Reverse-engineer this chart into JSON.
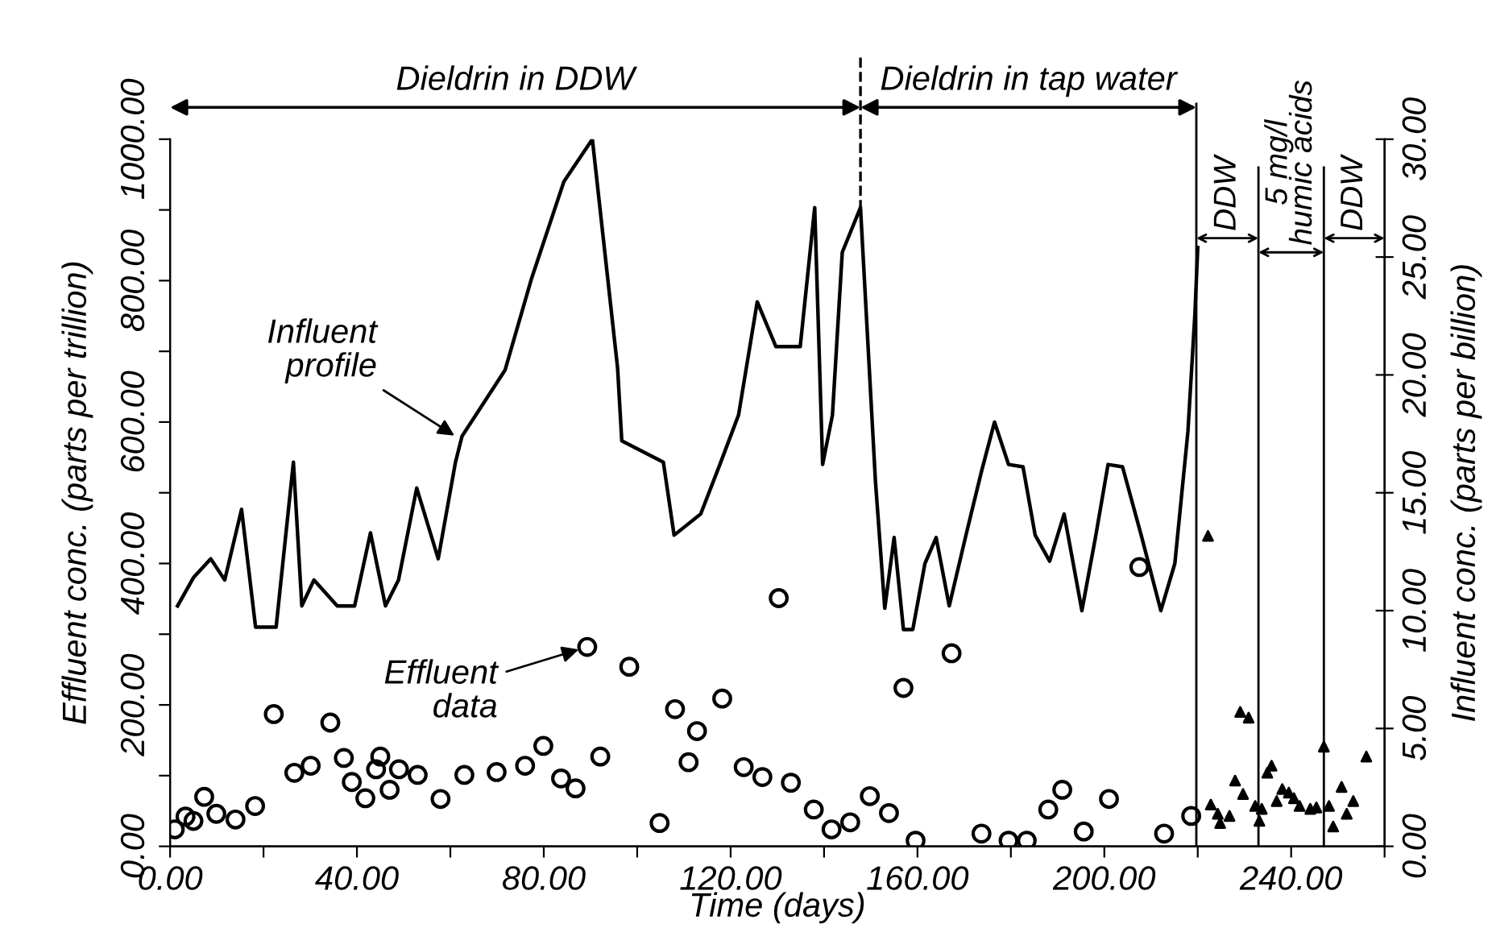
{
  "chart_data": {
    "type": "line",
    "xlabel": "Time (days)",
    "ylabel": "Effluent conc. (parts per trillion)",
    "y2label": "Influent conc. (parts per billion)",
    "xlim": [
      0,
      260
    ],
    "xticks": [
      {
        "value": 0,
        "label": "0.00"
      },
      {
        "value": 20,
        "label": null
      },
      {
        "value": 40,
        "label": "40.00"
      },
      {
        "value": 60,
        "label": null
      },
      {
        "value": 80,
        "label": "80.00"
      },
      {
        "value": 100,
        "label": null
      },
      {
        "value": 120,
        "label": "120.00"
      },
      {
        "value": 140,
        "label": null
      },
      {
        "value": 160,
        "label": "160.00"
      },
      {
        "value": 180,
        "label": null
      },
      {
        "value": 200,
        "label": "200.00"
      },
      {
        "value": 220,
        "label": null
      },
      {
        "value": 240,
        "label": "240.00"
      },
      {
        "value": 260,
        "label": null
      }
    ],
    "ylim": [
      0,
      1000
    ],
    "yticks": [
      {
        "value": 0,
        "label": "0.00"
      },
      {
        "value": 100,
        "label": null
      },
      {
        "value": 200,
        "label": "200.00"
      },
      {
        "value": 300,
        "label": null
      },
      {
        "value": 400,
        "label": "400.00"
      },
      {
        "value": 500,
        "label": null
      },
      {
        "value": 600,
        "label": "600.00"
      },
      {
        "value": 700,
        "label": null
      },
      {
        "value": 800,
        "label": "800.00"
      },
      {
        "value": 900,
        "label": null
      },
      {
        "value": 1000,
        "label": "1000.00"
      }
    ],
    "y2lim": [
      0,
      30
    ],
    "y2ticks": [
      {
        "value": 0,
        "label": "0.00"
      },
      {
        "value": 5,
        "label": "5.00"
      },
      {
        "value": 10,
        "label": "10.00"
      },
      {
        "value": 15,
        "label": "15.00"
      },
      {
        "value": 20,
        "label": "20.00"
      },
      {
        "value": 25,
        "label": "25.00"
      },
      {
        "value": 30,
        "label": "30.00"
      }
    ],
    "series": [
      {
        "axis": "y2",
        "color": "#000000",
        "marker": "none",
        "line_style": "solid",
        "x": [
          1.6,
          5,
          8.7,
          11.7,
          15.3,
          18.3,
          22.7,
          26.4,
          28.2,
          30.8,
          35.8,
          39.5,
          42.9,
          46.1,
          48.9,
          52.8,
          57.4,
          61.1,
          62.5,
          71.7,
          77.4,
          84.3,
          90.4,
          95.8,
          96.7,
          105.6,
          107.9,
          113.6,
          117.7,
          121.7,
          125.7,
          129.7,
          134.9,
          138,
          139.7,
          141.8,
          143.9,
          147.8,
          151,
          153,
          155,
          157,
          159,
          161.6,
          164,
          166.8,
          170.5,
          173.7,
          176.5,
          179.5,
          182.6,
          185.2,
          188.3,
          191.4,
          195.2,
          198.1,
          200.8,
          203.9,
          207.9,
          212.1,
          215.1,
          217.9,
          219.4,
          220
        ],
        "values": [
          10.2,
          11.4,
          12.2,
          11.3,
          14.3,
          9.3,
          9.3,
          16.3,
          10.2,
          11.3,
          10.2,
          10.2,
          13.3,
          10.2,
          11.3,
          15.2,
          12.2,
          16.3,
          17.4,
          20.2,
          24.1,
          28.2,
          30,
          20.3,
          17.2,
          16.3,
          13.2,
          14.1,
          16.2,
          18.3,
          23.1,
          21.2,
          21.2,
          27.1,
          16.2,
          18.3,
          25.2,
          27.1,
          15.5,
          10.1,
          13.1,
          9.2,
          9.2,
          12,
          13.1,
          10.2,
          13.3,
          15.9,
          18,
          16.2,
          16.1,
          13.2,
          12.1,
          14.1,
          10,
          13.1,
          16.2,
          16.1,
          13.2,
          10,
          12,
          17.6,
          22.6,
          25.4
        ]
      },
      {
        "type": "scatter",
        "axis": "y",
        "color": "#000000",
        "marker": "circle",
        "x": [
          1.0,
          3.3,
          5,
          7.3,
          9.9,
          14,
          18.2,
          22.2,
          26.6,
          30.1,
          34.3,
          37.2,
          38.9,
          41.8,
          44.1,
          45,
          47,
          49,
          53,
          57.9,
          63,
          69.9,
          76,
          79.9,
          83.7,
          86.8,
          89.3,
          92.1,
          98.3,
          104.8,
          108.1,
          111,
          112.8,
          118.2,
          122.8,
          126.8,
          130.3,
          132.9,
          137.8,
          141.6,
          145.6,
          149.8,
          153.9,
          157,
          159.6,
          167.3,
          173.7,
          179.5,
          183.4,
          188,
          191,
          195.6,
          201,
          207.5,
          212.8,
          218.6
        ],
        "values": [
          24,
          42,
          36,
          70,
          46,
          38,
          57,
          187,
          104,
          114,
          175,
          125,
          91,
          68,
          109,
          127,
          80,
          109,
          101,
          67,
          101,
          105,
          114,
          142,
          96,
          82,
          282,
          127,
          254,
          33,
          194,
          119,
          163,
          209,
          112,
          98,
          351,
          90,
          52,
          24,
          34,
          71,
          47,
          224,
          8,
          273,
          18,
          8,
          8,
          52,
          80,
          21,
          67,
          395,
          18,
          43
        ]
      },
      {
        "type": "scatter",
        "axis": "y",
        "color": "#000000",
        "marker": "triangle",
        "x": [
          222.2,
          222.8,
          224.3,
          224.8,
          226.8,
          228,
          229.1,
          229.7,
          230.9,
          232.3,
          233.2,
          233.7,
          234.9,
          235.8,
          236.9,
          238.1,
          239.5,
          240.6,
          241.8,
          244.1,
          245.4,
          247,
          248.1,
          249,
          250.8,
          251.9,
          253.3,
          256.1
        ],
        "values": [
          439,
          59,
          46,
          33,
          43,
          93,
          190,
          74,
          182,
          57,
          36,
          53,
          104,
          114,
          64,
          81,
          76,
          68,
          57,
          53,
          55,
          141,
          57,
          28,
          84,
          46,
          64,
          127
        ]
      }
    ],
    "ref_lines": [
      {
        "axis": "x",
        "value": 147.8,
        "line_style": "dashed"
      },
      {
        "axis": "x",
        "value": 219.7,
        "line_style": "solid"
      },
      {
        "axis": "x",
        "value": 233,
        "line_style": "solid"
      },
      {
        "axis": "x",
        "value": 247,
        "line_style": "solid"
      }
    ],
    "annotations": [
      "Dieldrin in DDW",
      "Dieldrin in tap water",
      "DDW",
      "5 mg/l\nhumic acids",
      "DDW",
      {
        "text": "Influent\nprofile",
        "x": 62.5,
        "y": 574
      },
      {
        "text": "Effluent\ndata",
        "x": 89.3,
        "y": 282
      }
    ]
  }
}
